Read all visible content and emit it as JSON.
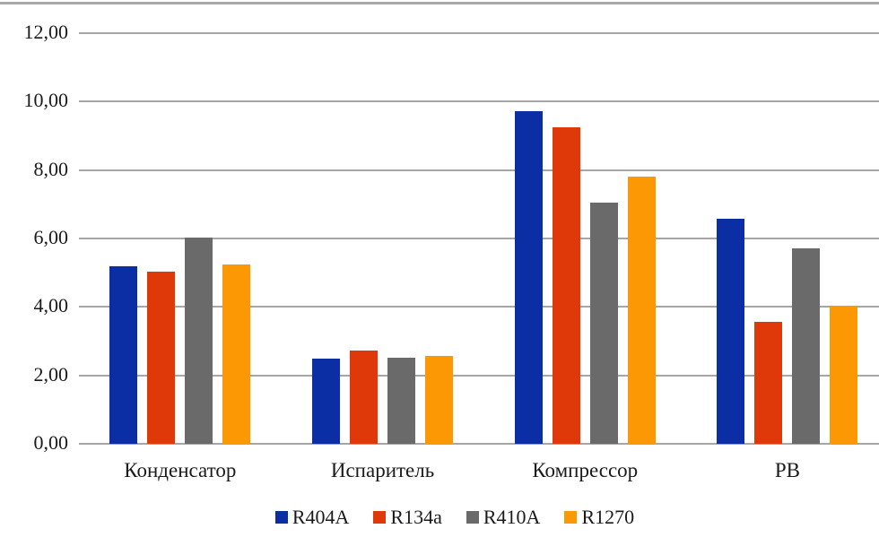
{
  "page": {
    "background_color": "#ffffff",
    "top_border_color": "#a8a8a8"
  },
  "chart_data": {
    "type": "bar",
    "title": "",
    "xlabel": "",
    "ylabel": "",
    "categories": [
      "Конденсатор",
      "Испаритель",
      "Компрессор",
      "РВ"
    ],
    "series": [
      {
        "name": "R404A",
        "color": "#0c2ea5",
        "values": [
          5.2,
          2.48,
          9.71,
          6.58
        ]
      },
      {
        "name": "R134a",
        "color": "#df390a",
        "values": [
          5.02,
          2.72,
          9.24,
          3.56
        ]
      },
      {
        "name": "R410A",
        "color": "#6a6a6a",
        "values": [
          6.02,
          2.51,
          7.05,
          5.72
        ]
      },
      {
        "name": "R1270",
        "color": "#fc9803",
        "values": [
          5.23,
          2.58,
          7.82,
          4.02
        ]
      }
    ],
    "ylim": [
      0,
      12
    ],
    "ytick_step": 2,
    "ytick_labels": [
      "0,00",
      "2,00",
      "4,00",
      "6,00",
      "8,00",
      "10,00",
      "12,00"
    ],
    "decimal_separator": ",",
    "grid": true,
    "gridline_color": "#a6a6a6",
    "legend_position": "bottom"
  }
}
